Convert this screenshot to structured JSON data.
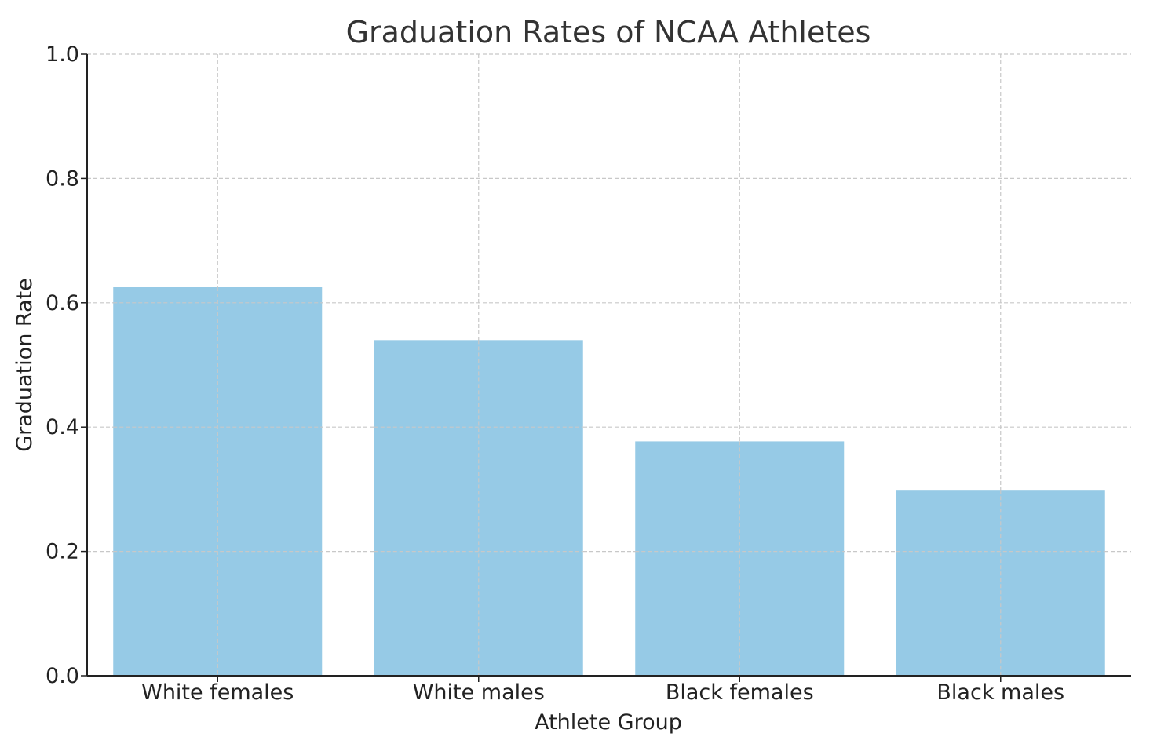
{
  "chart_data": {
    "type": "bar",
    "title": "Graduation Rates of NCAA Athletes",
    "xlabel": "Athlete Group",
    "ylabel": "Graduation Rate",
    "categories": [
      "White females",
      "White males",
      "Black females",
      "Black males"
    ],
    "values": [
      0.625,
      0.54,
      0.377,
      0.299
    ],
    "ylim": [
      0,
      1.0
    ],
    "yticks": [
      "0.0",
      "0.2",
      "0.4",
      "0.6",
      "0.8",
      "1.0"
    ],
    "grid": true,
    "bar_color": "#96cae6",
    "grid_color": "#c8c8c8",
    "axis_color": "#222222"
  }
}
